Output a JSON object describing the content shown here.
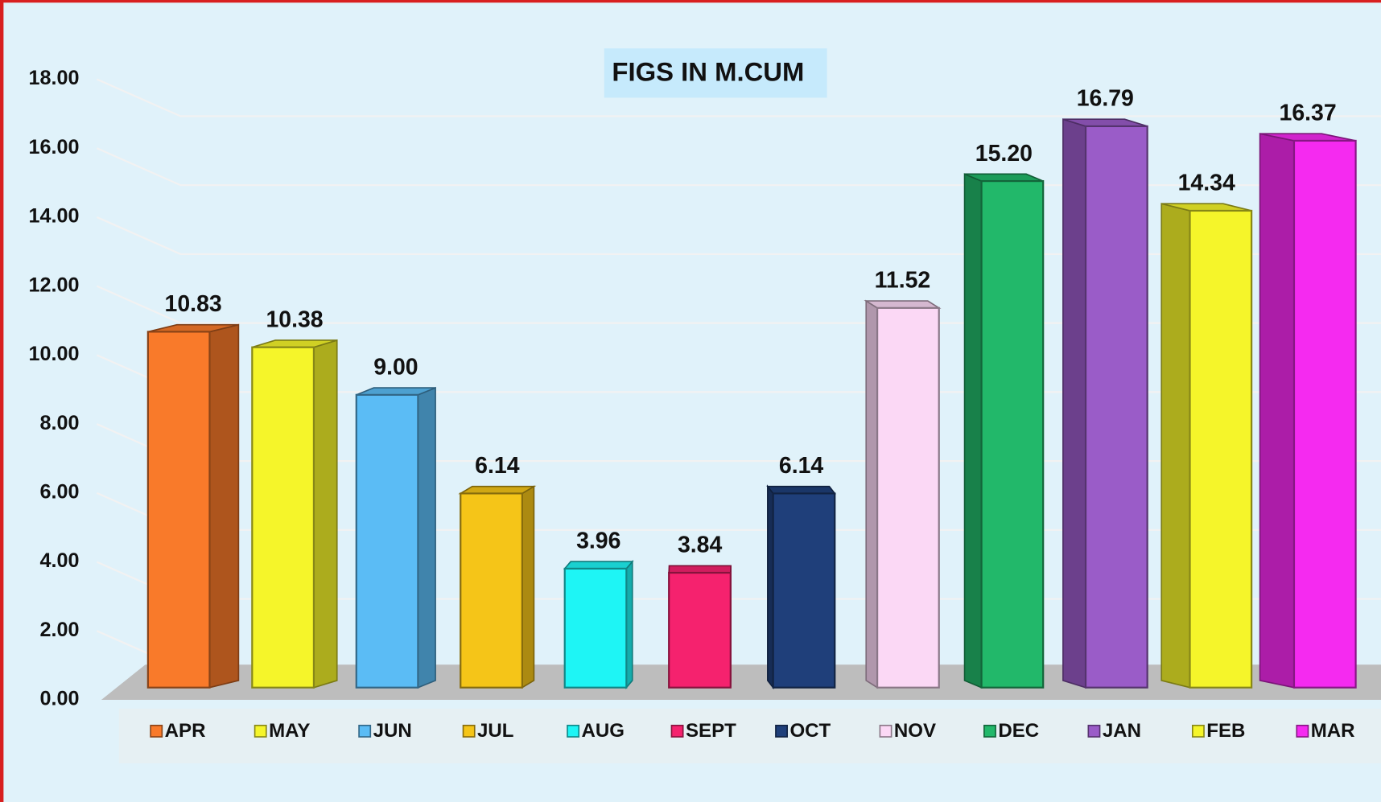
{
  "chart_data": {
    "type": "bar3d",
    "title": "FIGS IN M.CUM",
    "categories": [
      "APR",
      "MAY",
      "JUN",
      "JUL",
      "AUG",
      "SEPT",
      "OCT",
      "NOV",
      "DEC",
      "JAN",
      "FEB",
      "MAR"
    ],
    "values": [
      10.83,
      10.38,
      9.0,
      6.14,
      3.96,
      3.84,
      6.14,
      11.52,
      15.2,
      16.79,
      14.34,
      16.37
    ],
    "value_labels": [
      "10.83",
      "10.38",
      "9.00",
      "6.14",
      "3.96",
      "3.84",
      "6.14",
      "11.52",
      "15.20",
      "16.79",
      "14.34",
      "16.37"
    ],
    "colors": [
      "#f97a2a",
      "#f5f52a",
      "#5bbcf5",
      "#f5c518",
      "#1ef5f5",
      "#f5226e",
      "#1f3f7a",
      "#fbd8f5",
      "#22b86a",
      "#9a5cc8",
      "#f5f52a",
      "#f52af0"
    ],
    "ylim": [
      0,
      18
    ],
    "yticks": [
      {
        "value": 0,
        "label": "0.00"
      },
      {
        "value": 2,
        "label": "2.00"
      },
      {
        "value": 4,
        "label": "4.00"
      },
      {
        "value": 6,
        "label": "6.00"
      },
      {
        "value": 8,
        "label": "8.00"
      },
      {
        "value": 10,
        "label": "10.00"
      },
      {
        "value": 12,
        "label": "12.00"
      },
      {
        "value": 14,
        "label": "14.00"
      },
      {
        "value": 16,
        "label": "16.00"
      },
      {
        "value": 18,
        "label": "18.00"
      }
    ],
    "grid": true,
    "legend": "bottom"
  }
}
